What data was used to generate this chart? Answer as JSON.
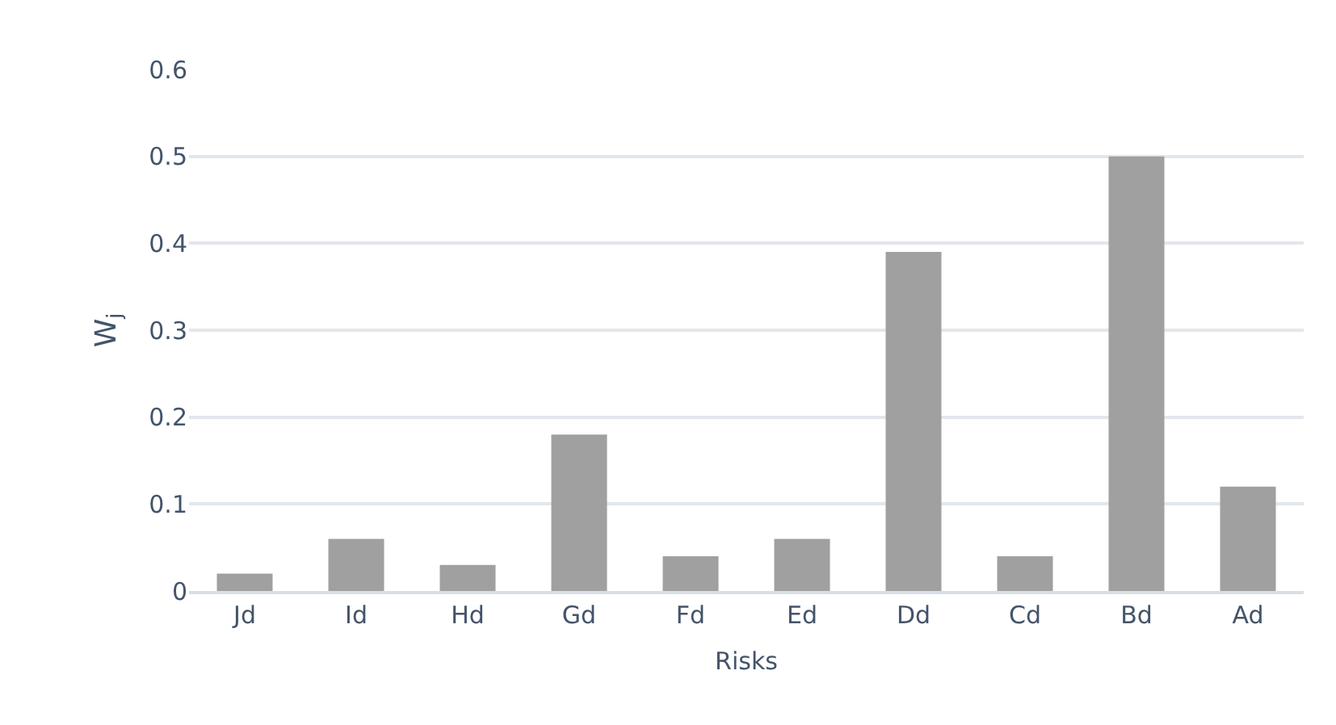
{
  "chart_data": {
    "type": "bar",
    "xlabel": "Risks",
    "ylabel": "W$_{j}$",
    "categories": [
      "Jd",
      "Id",
      "Hd",
      "Gd",
      "Fd",
      "Ed",
      "Dd",
      "Cd",
      "Bd",
      "Ad"
    ],
    "values": [
      0.02,
      0.06,
      0.03,
      0.18,
      0.04,
      0.06,
      0.39,
      0.04,
      0.5,
      0.12
    ],
    "color": "#a0a0a0",
    "ylim": [
      0,
      0.6
    ],
    "yticks": [
      0,
      0.1,
      0.2,
      0.3,
      0.4,
      0.5,
      0.6
    ],
    "grid": "y"
  }
}
